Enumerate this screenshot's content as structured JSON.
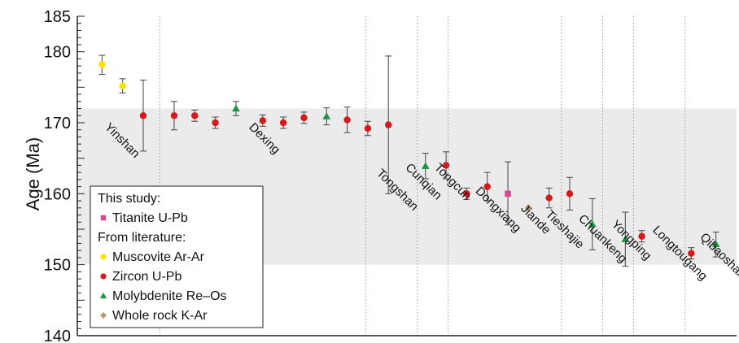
{
  "chart_data": {
    "type": "scatter",
    "title": "",
    "xlabel": "",
    "ylabel": "Age (Ma)",
    "ylim": [
      140,
      185
    ],
    "yticks": [
      140,
      150,
      160,
      170,
      180,
      185
    ],
    "band": [
      150,
      172
    ],
    "grid": "vertical dotted separators between deposits",
    "legend_position": "lower-left",
    "legend": {
      "headings": [
        "This study:",
        "From literature:"
      ],
      "entries": [
        {
          "name": "Titanite U-Pb",
          "marker": "square",
          "color": "#d6478f"
        },
        {
          "name": "Muscovite Ar-Ar",
          "marker": "circle",
          "color": "#ffe000"
        },
        {
          "name": "Zircon U-Pb",
          "marker": "circle",
          "color": "#d7191c"
        },
        {
          "name": "Molybdenite Re–Os",
          "marker": "triangle",
          "color": "#1a9641"
        },
        {
          "name": "Whole rock K-Ar",
          "marker": "diamond",
          "color": "#b59a73"
        }
      ]
    },
    "x_index_range": [
      0,
      32
    ],
    "separators": [
      4,
      14,
      16.5,
      18,
      23.5,
      25.5,
      27,
      29.5
    ],
    "deposit_labels": [
      {
        "name": "Yinshan",
        "x": 1.3,
        "y": 169.3
      },
      {
        "name": "Dexing",
        "x": 8.3,
        "y": 169.3
      },
      {
        "name": "Tongshan",
        "x": 14.5,
        "y": 162.8
      },
      {
        "name": "Cunqian",
        "x": 15.9,
        "y": 163.6
      },
      {
        "name": "Tongcun",
        "x": 17.3,
        "y": 163.6
      },
      {
        "name": "Dongxiang",
        "x": 19.3,
        "y": 160.3
      },
      {
        "name": "Jiande",
        "x": 21.5,
        "y": 157.8
      },
      {
        "name": "Tieshajie",
        "x": 22.7,
        "y": 157.0
      },
      {
        "name": "Chuankeng",
        "x": 24.3,
        "y": 156.4
      },
      {
        "name": "Yongping",
        "x": 25.9,
        "y": 155.6
      },
      {
        "name": "Longtougang",
        "x": 27.9,
        "y": 154.8
      },
      {
        "name": "Qibaoshan",
        "x": 30.2,
        "y": 153.8
      }
    ],
    "series": [
      {
        "name": "Muscovite Ar-Ar",
        "marker": "circle",
        "color": "#ffe000",
        "points": [
          {
            "x": 1.2,
            "y": 178.2,
            "low": 176.8,
            "high": 179.5
          },
          {
            "x": 2.2,
            "y": 175.2,
            "low": 174.2,
            "high": 176.2
          }
        ]
      },
      {
        "name": "Zircon U-Pb",
        "marker": "circle",
        "color": "#d7191c",
        "points": [
          {
            "x": 3.2,
            "y": 171.0,
            "low": 166.0,
            "high": 176.0
          },
          {
            "x": 4.7,
            "y": 171.0,
            "low": 169.0,
            "high": 173.0
          },
          {
            "x": 5.7,
            "y": 171.0,
            "low": 170.2,
            "high": 171.8
          },
          {
            "x": 6.7,
            "y": 170.0,
            "low": 169.2,
            "high": 170.8
          },
          {
            "x": 9.0,
            "y": 170.3,
            "low": 169.5,
            "high": 171.1
          },
          {
            "x": 10.0,
            "y": 170.0,
            "low": 169.2,
            "high": 170.8
          },
          {
            "x": 11.0,
            "y": 170.7,
            "low": 169.9,
            "high": 171.5
          },
          {
            "x": 13.1,
            "y": 170.4,
            "low": 168.6,
            "high": 172.2
          },
          {
            "x": 14.1,
            "y": 169.2,
            "low": 168.2,
            "high": 170.2
          },
          {
            "x": 15.1,
            "y": 169.7,
            "low": 160.0,
            "high": 179.4
          },
          {
            "x": 17.9,
            "y": 164.0,
            "low": 162.1,
            "high": 165.9
          },
          {
            "x": 18.9,
            "y": 160.0,
            "low": 159.2,
            "high": 160.8
          },
          {
            "x": 19.9,
            "y": 161.0,
            "low": 159.0,
            "high": 163.0
          },
          {
            "x": 22.9,
            "y": 159.4,
            "low": 158.0,
            "high": 160.8
          },
          {
            "x": 23.9,
            "y": 160.0,
            "low": 157.7,
            "high": 162.3
          },
          {
            "x": 27.4,
            "y": 154.0,
            "low": 153.2,
            "high": 154.8
          },
          {
            "x": 29.8,
            "y": 151.6,
            "low": 150.8,
            "high": 152.4
          }
        ]
      },
      {
        "name": "Molybdenite Re–Os",
        "marker": "triangle",
        "color": "#1a9641",
        "points": [
          {
            "x": 7.7,
            "y": 172.0,
            "low": 171.0,
            "high": 173.0
          },
          {
            "x": 12.1,
            "y": 170.9,
            "low": 169.7,
            "high": 172.1
          },
          {
            "x": 16.9,
            "y": 163.9,
            "low": 162.1,
            "high": 165.7
          },
          {
            "x": 25.0,
            "y": 155.7,
            "low": 152.1,
            "high": 159.3
          },
          {
            "x": 26.6,
            "y": 153.6,
            "low": 149.8,
            "high": 157.4
          },
          {
            "x": 31.0,
            "y": 152.9,
            "low": 151.1,
            "high": 154.6
          }
        ]
      },
      {
        "name": "Titanite U-Pb",
        "marker": "square",
        "color": "#d6478f",
        "points": [
          {
            "x": 20.9,
            "y": 160.0,
            "low": 155.6,
            "high": 164.5
          }
        ]
      },
      {
        "name": "Whole rock K-Ar",
        "marker": "diamond",
        "color": "#b59a73",
        "points": [
          {
            "x": 21.9,
            "y": 158.0
          }
        ]
      }
    ]
  }
}
